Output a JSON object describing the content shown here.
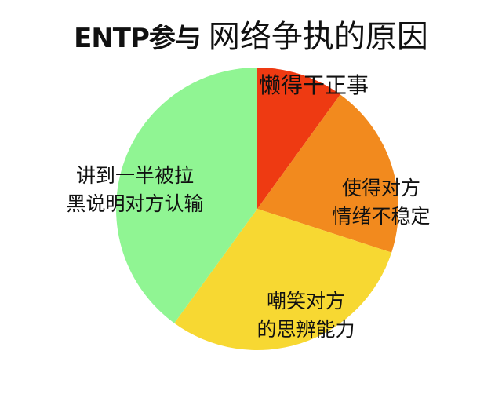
{
  "chart_data": {
    "type": "pie",
    "title_part1": "ENTP参与",
    "title_part2": "网络争执的原因",
    "start": "top",
    "direction": "clockwise",
    "slices": [
      {
        "label_lines": [
          "懒得干正事"
        ],
        "value": 10,
        "color": "#ee3a12"
      },
      {
        "label_lines": [
          "使得对方",
          "情绪不稳定"
        ],
        "value": 20,
        "color": "#f28a1e"
      },
      {
        "label_lines": [
          "嘲笑对方",
          "的思辨能力"
        ],
        "value": 30,
        "color": "#f7d832"
      },
      {
        "label_lines": [
          "讲到一半被拉",
          "黑说明对方认输"
        ],
        "value": 40,
        "color": "#90f593"
      }
    ]
  }
}
